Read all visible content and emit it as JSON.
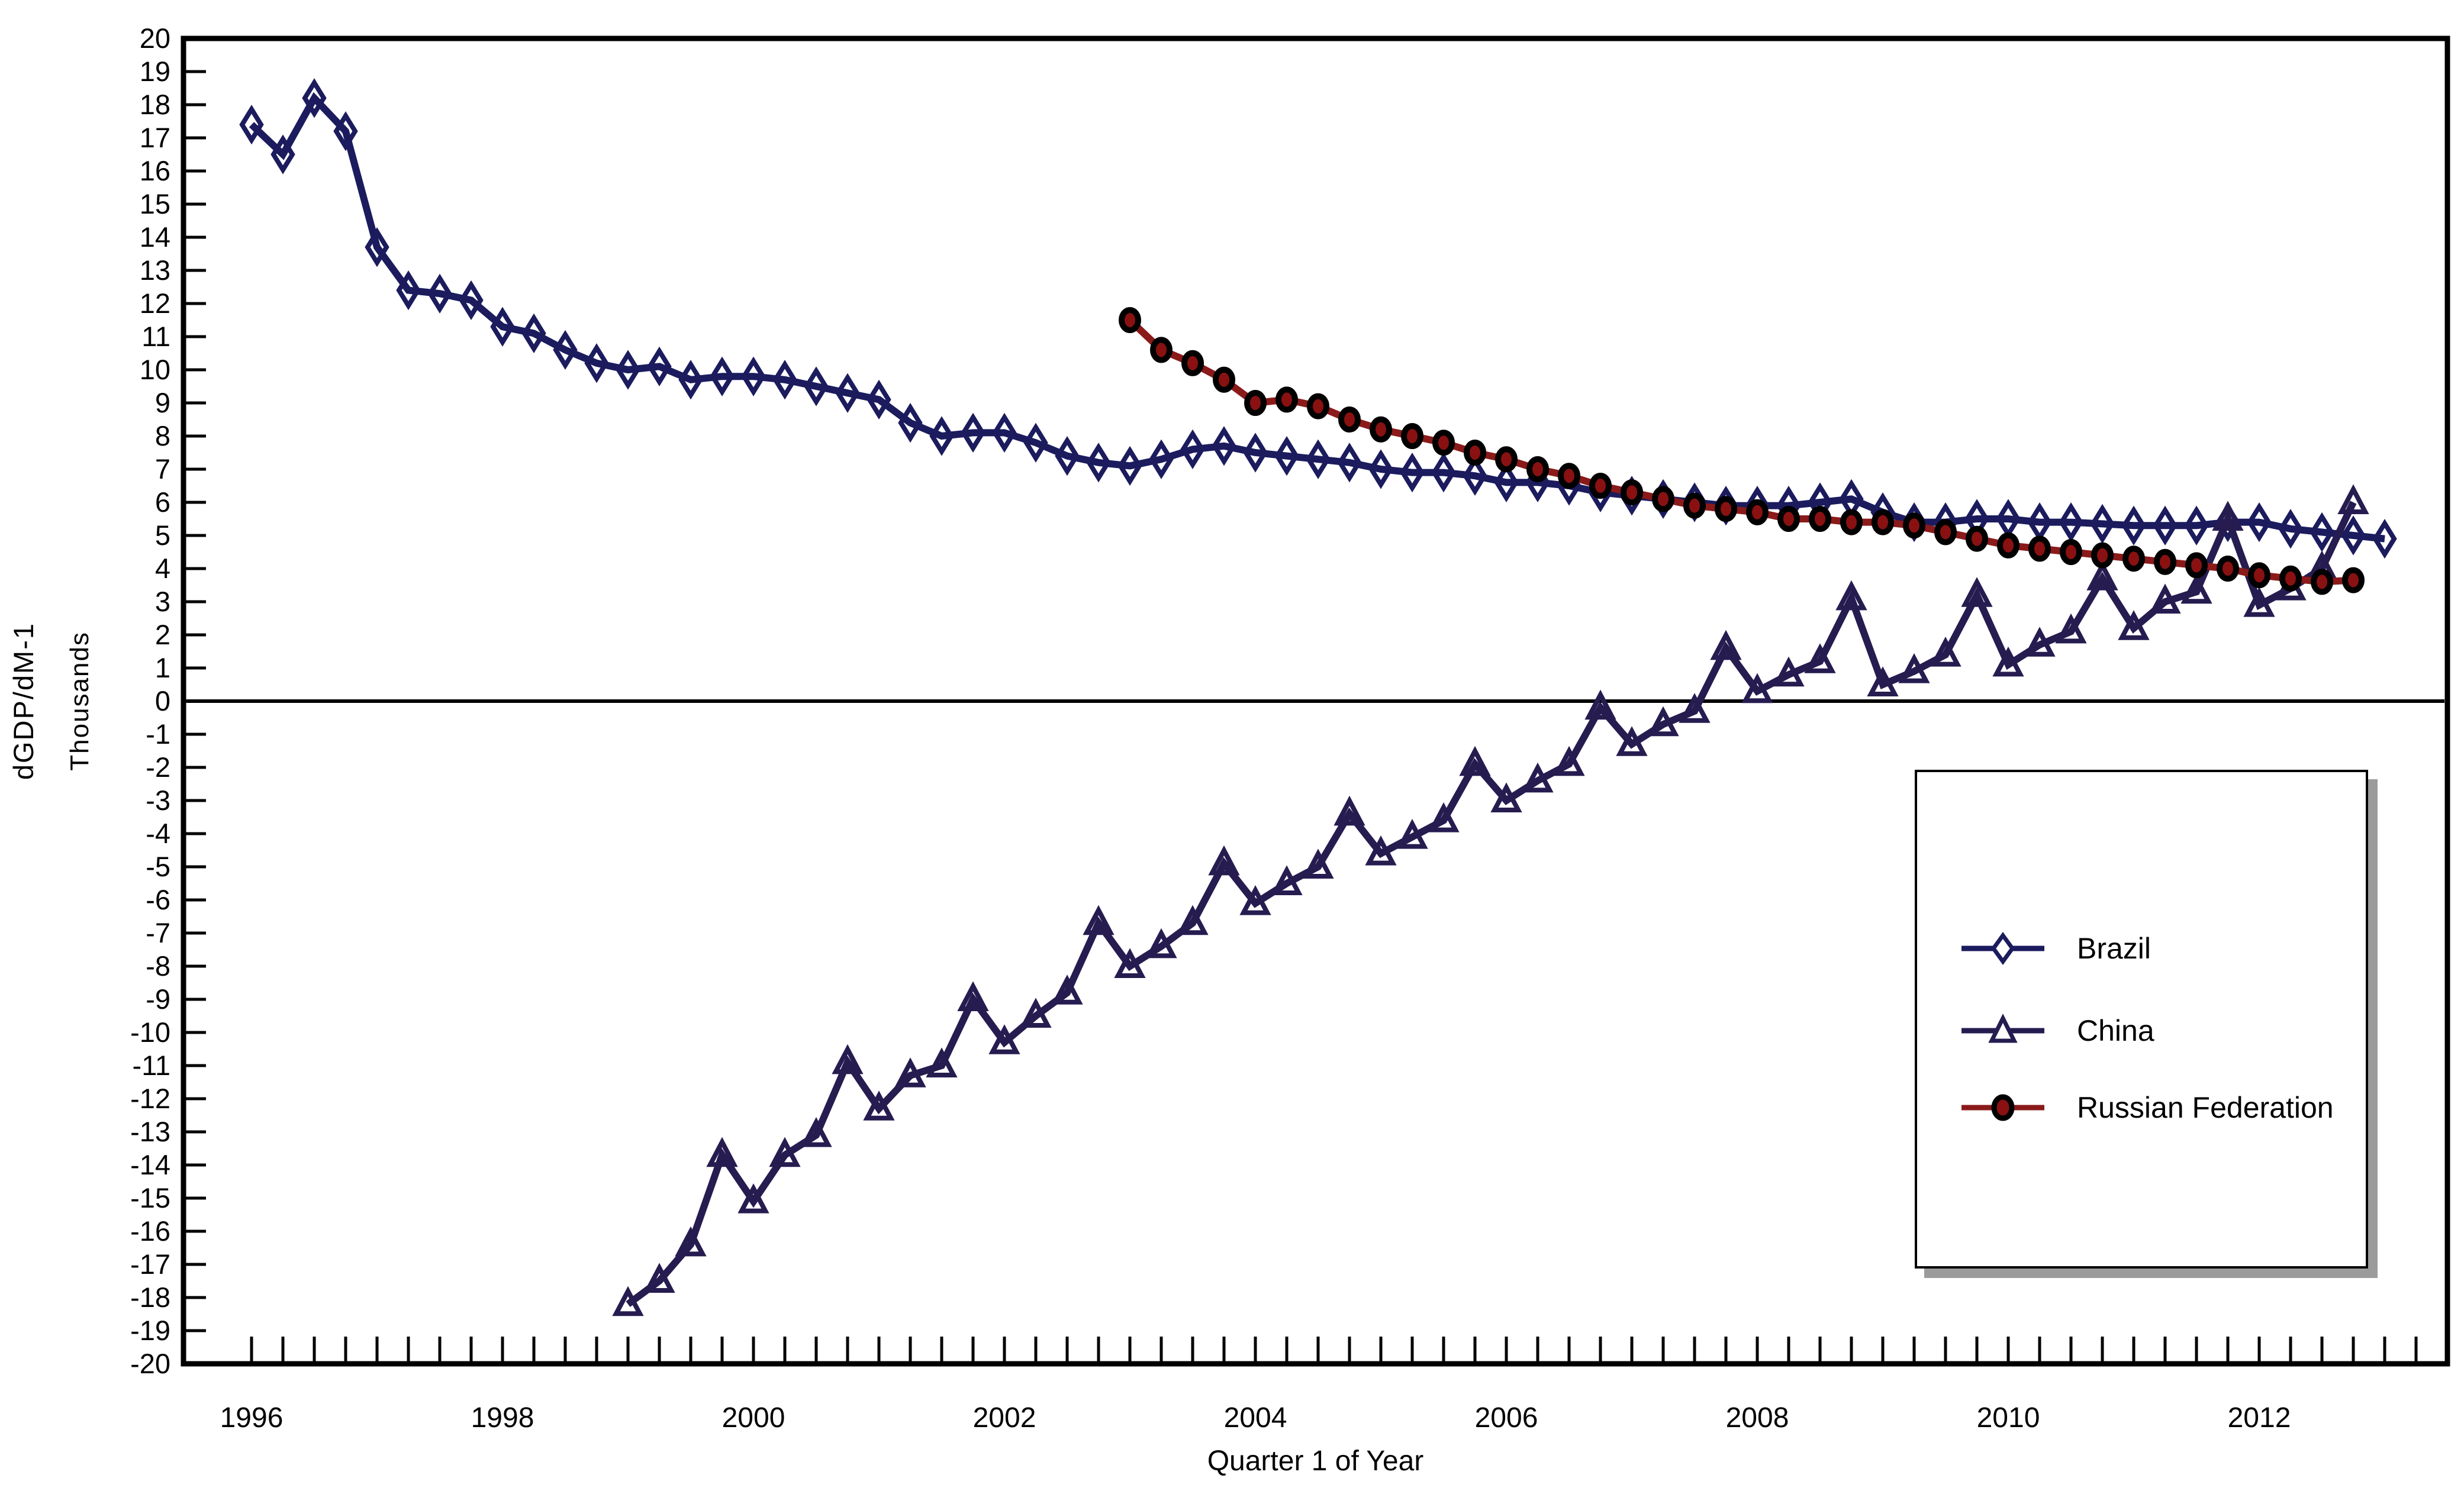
{
  "colors": {
    "brazil": "#1b1b5e",
    "china": "#261c50",
    "russia_line": "#8b1a1a",
    "russia_fill": "#8a1111",
    "axis": "#000000",
    "legend_shadow": "#9b9b9b"
  },
  "y_axis": {
    "label_outer": "dGDP/dM-1",
    "label_inner": "Thousands",
    "max": 20,
    "min": -20,
    "step": 1,
    "tick_labels": [
      "20",
      "19",
      "18",
      "17",
      "16",
      "15",
      "14",
      "13",
      "12",
      "11",
      "10",
      "9",
      "8",
      "7",
      "6",
      "5",
      "4",
      "3",
      "2",
      "1",
      "0",
      "-1",
      "-2",
      "-3",
      "-4",
      "-5",
      "-6",
      "-7",
      "-8",
      "-9",
      "-10",
      "-11",
      "-12",
      "-13",
      "-14",
      "-15",
      "-16",
      "-17",
      "-18",
      "-19",
      "-20"
    ]
  },
  "x_axis": {
    "title": "Quarter 1 of Year",
    "year_labels": [
      "1996",
      "1998",
      "2000",
      "2002",
      "2004",
      "2006",
      "2008",
      "2010",
      "2012"
    ],
    "first_tick_year": 1996,
    "quarters_per_year": 4
  },
  "legend": {
    "entries": [
      {
        "label": "Brazil",
        "marker": "diamond"
      },
      {
        "label": "China",
        "marker": "triangle"
      },
      {
        "label": "Russian Federation",
        "marker": "circle"
      }
    ]
  },
  "chart_data": {
    "type": "line",
    "title": "",
    "xlabel": "Quarter 1 of Year",
    "ylabel": "dGDP/dM-1 (Thousands)",
    "ylim": [
      -20,
      20
    ],
    "x_unit": "quarterly",
    "grid": false,
    "zero_line": true,
    "legend_position": "right-middle-box",
    "series": [
      {
        "name": "Brazil",
        "marker": "diamond",
        "marker_open": true,
        "color": "#1b1b5e",
        "start_year": 1996,
        "start_quarter": 1,
        "values": [
          17.4,
          16.5,
          18.2,
          17.2,
          13.7,
          12.4,
          12.3,
          12.1,
          11.3,
          11.1,
          10.6,
          10.2,
          10.0,
          10.1,
          9.7,
          9.8,
          9.8,
          9.7,
          9.5,
          9.3,
          9.1,
          8.4,
          8.0,
          8.1,
          8.1,
          7.8,
          7.4,
          7.2,
          7.1,
          7.3,
          7.6,
          7.7,
          7.5,
          7.4,
          7.3,
          7.2,
          7.0,
          6.9,
          6.9,
          6.8,
          6.6,
          6.6,
          6.5,
          6.3,
          6.2,
          6.1,
          6.0,
          5.9,
          5.9,
          5.9,
          6.0,
          6.1,
          5.7,
          5.4,
          5.4,
          5.5,
          5.5,
          5.4,
          5.4,
          5.35,
          5.3,
          5.3,
          5.3,
          5.4,
          5.4,
          5.2,
          5.1,
          5.0,
          4.9
        ]
      },
      {
        "name": "China",
        "marker": "triangle",
        "marker_open": true,
        "color": "#261c50",
        "start_year": 1999,
        "start_quarter": 1,
        "values": [
          -18.2,
          -17.5,
          -16.4,
          -13.7,
          -15.1,
          -13.7,
          -13.1,
          -10.9,
          -12.3,
          -11.3,
          -11.0,
          -9.0,
          -10.3,
          -9.5,
          -8.8,
          -6.7,
          -8.0,
          -7.4,
          -6.7,
          -4.9,
          -6.1,
          -5.5,
          -5.0,
          -3.4,
          -4.6,
          -4.1,
          -3.6,
          -1.9,
          -3.0,
          -2.4,
          -1.9,
          -0.2,
          -1.3,
          -0.7,
          -0.3,
          1.6,
          0.3,
          0.8,
          1.2,
          3.1,
          0.5,
          0.9,
          1.4,
          3.2,
          1.1,
          1.7,
          2.1,
          3.7,
          2.2,
          3.0,
          3.3,
          5.5,
          2.9,
          3.4,
          4.0,
          6.0
        ]
      },
      {
        "name": "Russian Federation",
        "marker": "circle",
        "marker_open": false,
        "color": "#8b1a1a",
        "marker_fill": "#8a1111",
        "marker_edge": "#000000",
        "start_year": 2003,
        "start_quarter": 1,
        "values": [
          11.5,
          10.6,
          10.2,
          9.7,
          9.0,
          9.1,
          8.9,
          8.5,
          8.2,
          8.0,
          7.8,
          7.5,
          7.3,
          7.0,
          6.8,
          6.5,
          6.3,
          6.1,
          5.9,
          5.8,
          5.7,
          5.5,
          5.5,
          5.4,
          5.4,
          5.3,
          5.1,
          4.9,
          4.7,
          4.6,
          4.5,
          4.4,
          4.3,
          4.2,
          4.1,
          4.0,
          3.8,
          3.7,
          3.6,
          3.65
        ]
      }
    ]
  }
}
